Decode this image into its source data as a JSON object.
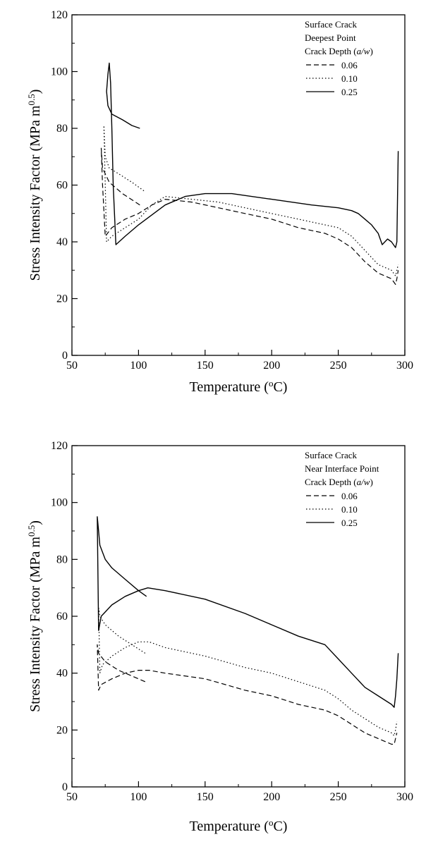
{
  "chart_data": [
    {
      "type": "line",
      "title": "",
      "xlabel": "Temperature (°C)",
      "ylabel": "Stress Intensity Factor (MPa m^0.5)",
      "xlim": [
        50,
        300
      ],
      "ylim": [
        0,
        120
      ],
      "xticks": [
        50,
        100,
        150,
        200,
        250,
        300
      ],
      "yticks": [
        0,
        20,
        40,
        60,
        80,
        100,
        120
      ],
      "grid": false,
      "legend_placement": "top-right",
      "legend_title": [
        "Surface Crack",
        "Deepest Point",
        "Crack Depth (a/w)"
      ],
      "series": [
        {
          "name": "0.06",
          "style": "dashed",
          "x": [
            101,
            88,
            78,
            73,
            72,
            73,
            75,
            80,
            90,
            100,
            110,
            120,
            140,
            160,
            180,
            200,
            220,
            240,
            250,
            260,
            270,
            280,
            290,
            293,
            294,
            295
          ],
          "y": [
            53,
            57,
            61,
            66,
            73,
            60,
            42,
            45,
            48,
            50,
            53,
            55,
            54,
            52,
            50,
            48,
            45,
            43,
            41,
            38,
            33,
            29,
            27,
            25,
            27,
            30
          ]
        },
        {
          "name": "0.10",
          "style": "dotted",
          "x": [
            104,
            95,
            85,
            78,
            75,
            74,
            76,
            80,
            90,
            100,
            110,
            120,
            140,
            160,
            180,
            200,
            220,
            240,
            250,
            260,
            270,
            280,
            290,
            293,
            294,
            295
          ],
          "y": [
            58,
            61,
            64,
            66,
            70,
            81,
            40,
            42,
            45,
            48,
            53,
            56,
            55,
            54,
            52,
            50,
            48,
            46,
            45,
            42,
            37,
            32,
            30,
            28,
            30,
            32
          ]
        },
        {
          "name": "0.25",
          "style": "solid",
          "x": [
            101,
            95,
            88,
            80,
            77,
            76,
            77,
            78,
            79,
            80,
            81,
            83,
            90,
            100,
            120,
            135,
            150,
            170,
            200,
            230,
            250,
            260,
            265,
            270,
            275,
            280,
            283,
            287,
            290,
            293,
            294,
            295
          ],
          "y": [
            80,
            81,
            83,
            85,
            88,
            93,
            99,
            103,
            96,
            80,
            60,
            39,
            42,
            46,
            53,
            56,
            57,
            57,
            55,
            53,
            52,
            51,
            50,
            48,
            46,
            43,
            39,
            41,
            40,
            38,
            40,
            72
          ]
        }
      ]
    },
    {
      "type": "line",
      "title": "",
      "xlabel": "Temperature (°C)",
      "ylabel": "Stress Intensity Factor (MPa m^0.5)",
      "xlim": [
        50,
        300
      ],
      "ylim": [
        0,
        120
      ],
      "xticks": [
        50,
        100,
        150,
        200,
        250,
        300
      ],
      "yticks": [
        0,
        20,
        40,
        60,
        80,
        100,
        120
      ],
      "grid": false,
      "legend_placement": "top-right",
      "legend_title": [
        "Surface Crack",
        "Near Interface Point",
        "Crack Depth (a/w)"
      ],
      "series": [
        {
          "name": "0.06",
          "style": "dashed",
          "x": [
            105,
            95,
            85,
            75,
            70,
            69,
            70,
            72,
            80,
            90,
            100,
            108,
            120,
            150,
            180,
            200,
            220,
            240,
            250,
            260,
            270,
            280,
            290,
            292,
            293,
            294
          ],
          "y": [
            37,
            39,
            41,
            44,
            47,
            50,
            34,
            36,
            38,
            40,
            41,
            41,
            40,
            38,
            34,
            32,
            29,
            27,
            25,
            22,
            19,
            17,
            15,
            15,
            17,
            19
          ]
        },
        {
          "name": "0.10",
          "style": "dotted",
          "x": [
            105,
            95,
            85,
            75,
            71,
            70,
            71,
            73,
            80,
            90,
            100,
            108,
            120,
            150,
            180,
            200,
            220,
            240,
            250,
            260,
            270,
            280,
            290,
            292,
            293,
            294
          ],
          "y": [
            47,
            50,
            53,
            57,
            60,
            63,
            40,
            43,
            46,
            49,
            51,
            51,
            49,
            46,
            42,
            40,
            37,
            34,
            31,
            27,
            24,
            21,
            19,
            18,
            20,
            23
          ]
        },
        {
          "name": "0.25",
          "style": "solid",
          "x": [
            106,
            100,
            90,
            80,
            75,
            71,
            70,
            69,
            70,
            72,
            80,
            90,
            100,
            107,
            120,
            150,
            180,
            200,
            220,
            240,
            250,
            260,
            270,
            280,
            290,
            292,
            293,
            294,
            295
          ],
          "y": [
            67,
            69,
            73,
            77,
            80,
            85,
            90,
            95,
            55,
            60,
            64,
            67,
            69,
            70,
            69,
            66,
            61,
            57,
            53,
            50,
            45,
            40,
            35,
            32,
            29,
            28,
            32,
            38,
            47
          ]
        }
      ]
    }
  ]
}
